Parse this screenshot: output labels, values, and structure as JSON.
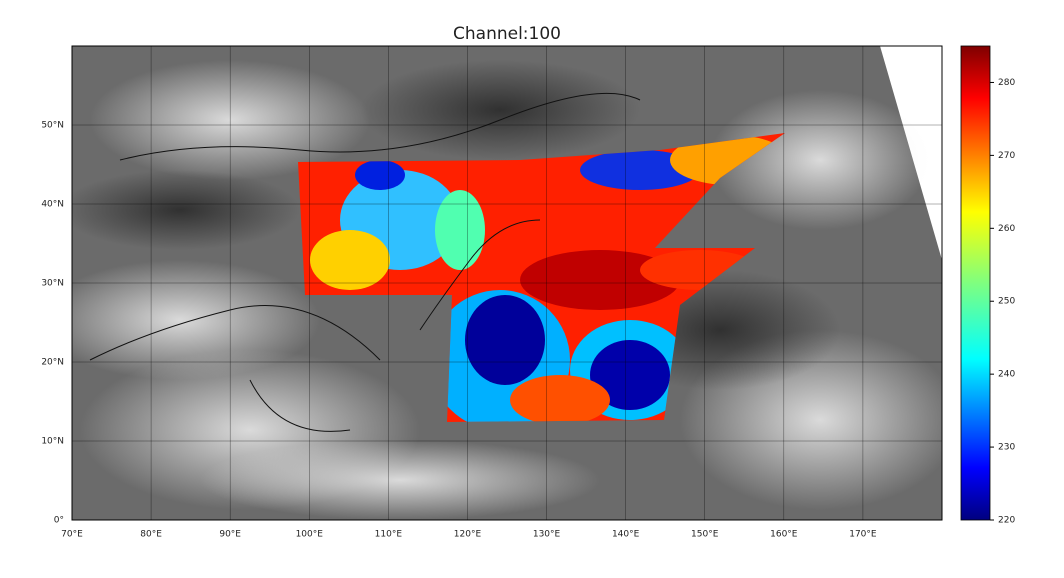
{
  "map": {
    "title": "Channel:100",
    "xlim": [
      70,
      180
    ],
    "ylim": [
      0,
      60
    ],
    "lon_ticks": [
      {
        "value": 70,
        "label": "70°E"
      },
      {
        "value": 80,
        "label": "80°E"
      },
      {
        "value": 90,
        "label": "90°E"
      },
      {
        "value": 100,
        "label": "100°E"
      },
      {
        "value": 110,
        "label": "110°E"
      },
      {
        "value": 120,
        "label": "120°E"
      },
      {
        "value": 130,
        "label": "130°E"
      },
      {
        "value": 140,
        "label": "140°E"
      },
      {
        "value": 150,
        "label": "150°E"
      },
      {
        "value": 160,
        "label": "160°E"
      },
      {
        "value": 170,
        "label": "170°E"
      }
    ],
    "lat_ticks": [
      {
        "value": 0,
        "label": "0°"
      },
      {
        "value": 10,
        "label": "10°N"
      },
      {
        "value": 20,
        "label": "20°N"
      },
      {
        "value": 30,
        "label": "30°N"
      },
      {
        "value": 40,
        "label": "40°N"
      },
      {
        "value": 50,
        "label": "50°N"
      }
    ],
    "grid": true,
    "colorbar": {
      "lim": [
        220,
        285
      ],
      "ticks": [
        220,
        230,
        240,
        250,
        260,
        270,
        280
      ],
      "colormap": "jet"
    }
  }
}
